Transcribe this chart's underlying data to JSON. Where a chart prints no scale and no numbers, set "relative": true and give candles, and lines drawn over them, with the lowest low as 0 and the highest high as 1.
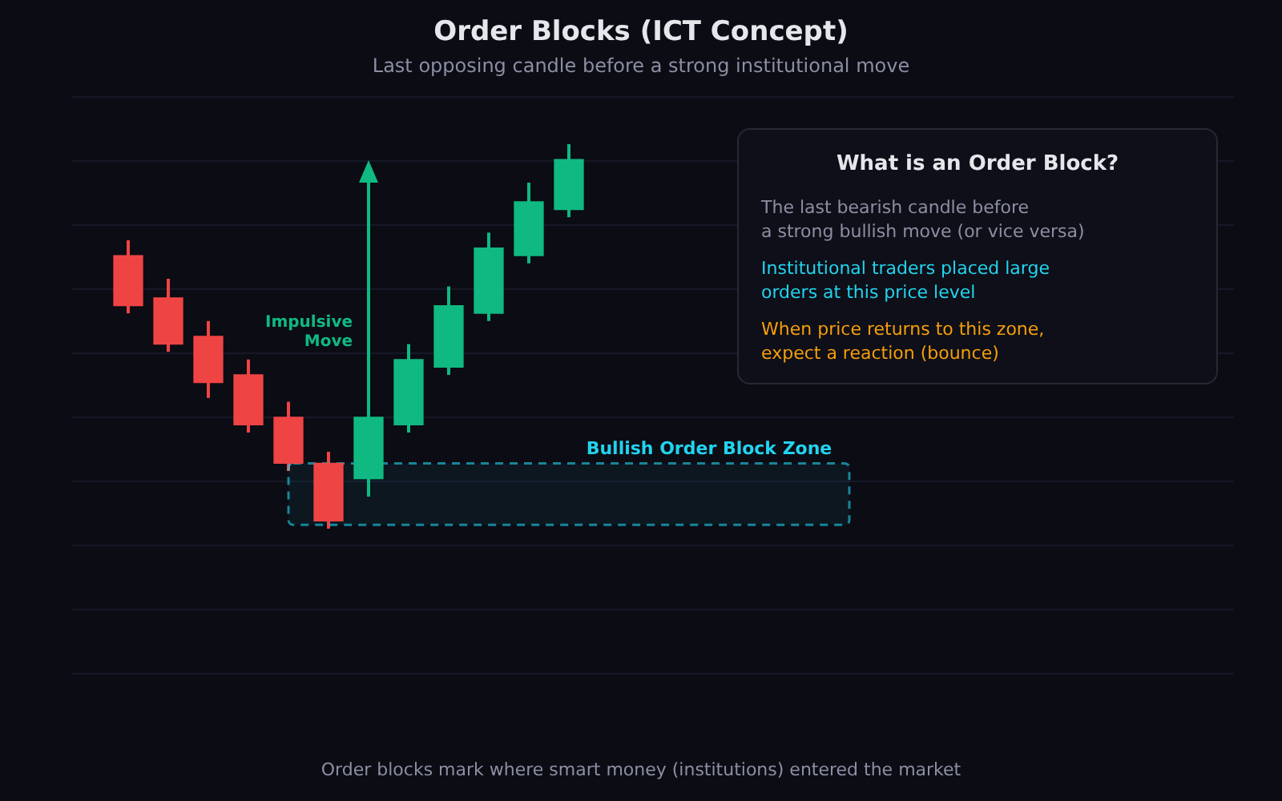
{
  "chart_data": {
    "type": "candlestick",
    "title": "Order Blocks (ICT Concept)",
    "subtitle": "Last opposing candle before a strong institutional move",
    "categories": [
      null,
      null,
      null,
      null,
      null,
      null,
      null,
      null,
      null,
      null,
      null,
      null
    ],
    "ohlc": [
      [
        0.71,
        0.75,
        0.56,
        0.58
      ],
      [
        0.6,
        0.65,
        0.46,
        0.48
      ],
      [
        0.5,
        0.54,
        0.34,
        0.38
      ],
      [
        0.4,
        0.44,
        0.25,
        0.27
      ],
      [
        0.29,
        0.33,
        0.15,
        0.17
      ],
      [
        0.17,
        0.2,
        0,
        0.02
      ],
      [
        0.13,
        0.33,
        0.1,
        0.29
      ],
      [
        0.27,
        0.48,
        0.25,
        0.44
      ],
      [
        0.42,
        0.63,
        0.4,
        0.58
      ],
      [
        0.56,
        0.77,
        0.54,
        0.73
      ],
      [
        0.71,
        0.9,
        0.69,
        0.85
      ],
      [
        0.83,
        1,
        0.81,
        0.96
      ]
    ],
    "colors": [
      "#ef4444",
      "#ef4444",
      "#ef4444",
      "#ef4444",
      "#ef4444",
      "#ef4444",
      "#10b981",
      "#10b981",
      "#10b981",
      "#10b981",
      "#10b981",
      "#10b981"
    ],
    "relative": true,
    "bands": [
      {
        "axis": "y",
        "from": 0.01,
        "to": 0.17,
        "label": "Bullish Order Block Zone",
        "color": "#22d3ee"
      }
    ],
    "annotations": [
      "Impulsive Move",
      "What is an Order Block?",
      "The last bearish candle before\na strong bullish move (or vice versa)",
      "Institutional traders placed large\norders at this price level",
      "When price returns to this zone,\nexpect a reaction (bounce)",
      "Order blocks mark where smart money (institutions) entered the market"
    ],
    "grid": true
  }
}
